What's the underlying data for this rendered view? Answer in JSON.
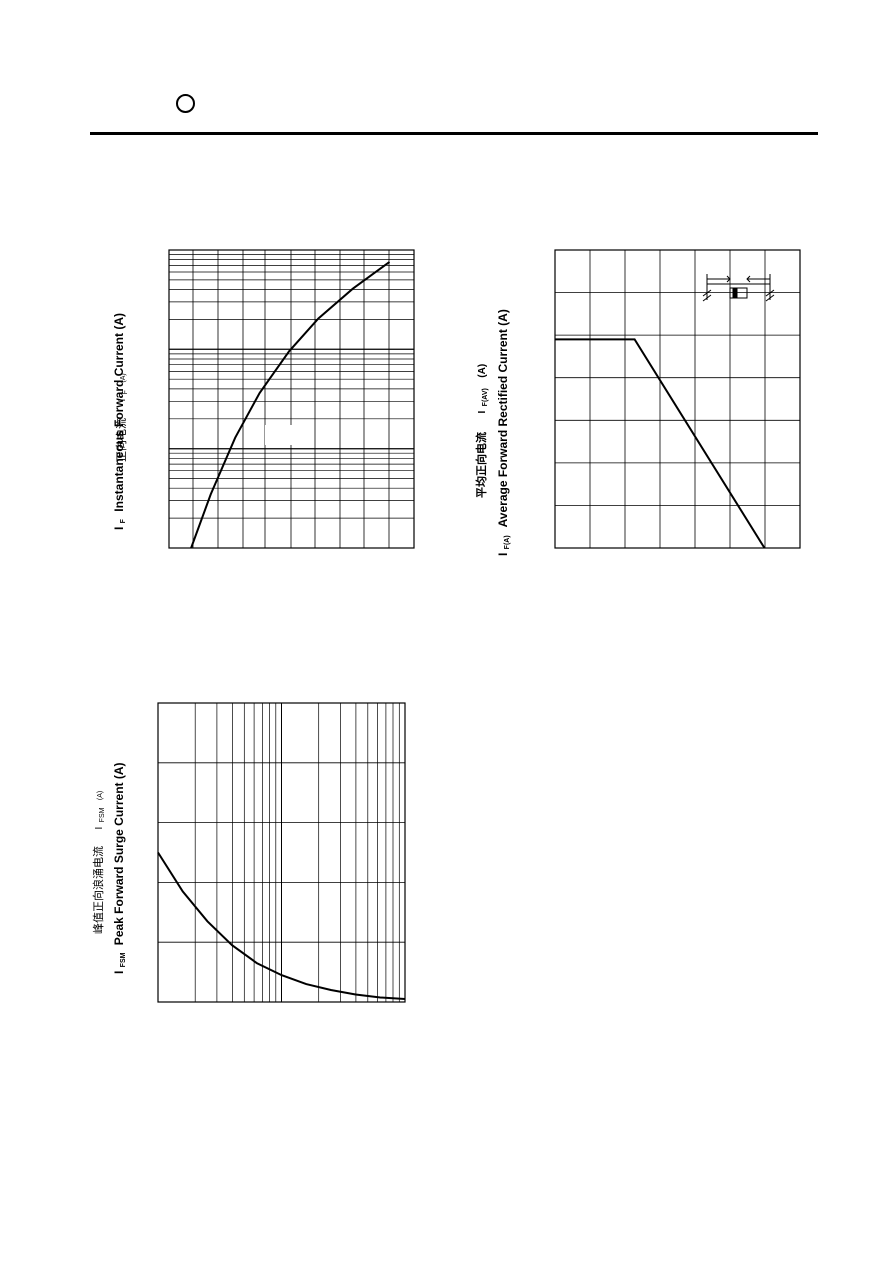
{
  "header": {
    "logo_icon": "circle-logo-icon",
    "rule_color": "#000000"
  },
  "chart_data": [
    {
      "id": "forward-characteristics",
      "type": "line",
      "title": "",
      "ylabel_cn": "正向电流",
      "ylabel_symbol": "I",
      "ylabel_symbol_sub": "F",
      "ylabel_unit_small": "(A)",
      "ylabel_symbol2": "I",
      "ylabel_symbol2_sub": "F",
      "ylabel_en": "Instantaneous Forward Current (A)",
      "xlabel": "",
      "y_scale": "log",
      "y_decades": 3,
      "x_divisions": 9,
      "series": [
        {
          "points_norm": [
            [
              0.09,
              0.0
            ],
            [
              0.17,
              0.18
            ],
            [
              0.27,
              0.37
            ],
            [
              0.37,
              0.52
            ],
            [
              0.49,
              0.66
            ],
            [
              0.61,
              0.77
            ],
            [
              0.75,
              0.87
            ],
            [
              0.9,
              0.96
            ]
          ]
        }
      ]
    },
    {
      "id": "derating-curve",
      "type": "line",
      "title": "",
      "ylabel_cn": "平均正向电流",
      "ylabel_symbol": "I",
      "ylabel_symbol_sub": "F(AV)",
      "ylabel_unit_small": "(A)",
      "ylabel_symbol2": "I",
      "ylabel_symbol2_sub": "F(A)",
      "ylabel_en": "Average Forward Rectified Current (A)",
      "xlabel": "",
      "x_divisions": 7,
      "y_divisions": 7,
      "inset_icon": "diode-lead-icon",
      "series": [
        {
          "points_norm": [
            [
              0.0,
              0.7
            ],
            [
              0.325,
              0.7
            ],
            [
              0.855,
              0.0
            ]
          ]
        }
      ]
    },
    {
      "id": "surge-current",
      "type": "line",
      "title": "",
      "ylabel_cn": "峰值正向浪涌电流",
      "ylabel_symbol": "I",
      "ylabel_symbol_sub": "FSM",
      "ylabel_unit_small": "(A)",
      "ylabel_symbol2": "I",
      "ylabel_symbol2_sub": "FSM",
      "ylabel_en": "Peak Forward Surge Current (A)",
      "xlabel": "",
      "x_scale": "log",
      "x_decades": 2,
      "y_divisions": 5,
      "series": [
        {
          "points_norm": [
            [
              0.0,
              0.5
            ],
            [
              0.1,
              0.37
            ],
            [
              0.2,
              0.27
            ],
            [
              0.3,
              0.19
            ],
            [
              0.4,
              0.13
            ],
            [
              0.5,
              0.09
            ],
            [
              0.6,
              0.06
            ],
            [
              0.7,
              0.04
            ],
            [
              0.8,
              0.025
            ],
            [
              0.9,
              0.015
            ],
            [
              1.0,
              0.01
            ]
          ]
        }
      ]
    }
  ]
}
